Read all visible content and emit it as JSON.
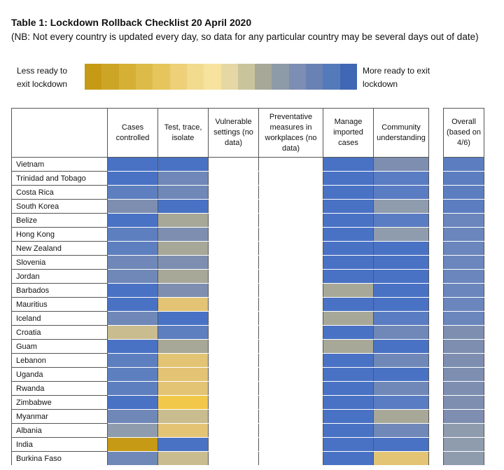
{
  "title": "Table 1: Lockdown Rollback Checklist 20 April 2020",
  "note": "(NB: Not every country is updated every day, so data for any particular country may be several days out of date)",
  "legend": {
    "less_label": "Less ready to exit lockdown",
    "more_label": "More ready to exit lockdown",
    "scale_colors": [
      "#c69a14",
      "#cda526",
      "#d6b035",
      "#ddbb48",
      "#e6c55c",
      "#edd077",
      "#f2da8f",
      "#f7e39d",
      "#e6d8a5",
      "#c9c49c",
      "#a8a898",
      "#8d9aa8",
      "#7d8eb4",
      "#6a81b4",
      "#557aba",
      "#4067b4"
    ]
  },
  "columns": {
    "country": "",
    "cases_controlled": "Cases controlled",
    "test_trace_isolate": "Test, trace, isolate",
    "vulnerable_settings": "Vulnerable settings (no data)",
    "preventative_measures": "Preventative measures in workplaces (no data)",
    "manage_imported": "Manage imported cases",
    "community_understanding": "Community understanding",
    "overall": "Overall (based on 4/6)"
  },
  "rows": [
    {
      "country": "Vietnam",
      "colors": [
        "#4a72c4",
        "#4a72c4",
        "#ffffff",
        "#ffffff",
        "#4a72c4",
        "#7d8eb0"
      ],
      "overall": "#5c7ec0"
    },
    {
      "country": "Trinidad and Tobago",
      "colors": [
        "#4a72c4",
        "#6f88b8",
        "#ffffff",
        "#ffffff",
        "#4a72c4",
        "#5a7cc2"
      ],
      "overall": "#5c7ec0"
    },
    {
      "country": "Costa Rica",
      "colors": [
        "#5e7fbf",
        "#6f88b8",
        "#ffffff",
        "#ffffff",
        "#4a72c4",
        "#5a7cc2"
      ],
      "overall": "#5c7ec0"
    },
    {
      "country": "South Korea",
      "colors": [
        "#7d8eb0",
        "#4a72c4",
        "#ffffff",
        "#ffffff",
        "#4a72c4",
        "#8f9cae"
      ],
      "overall": "#5c7ec0"
    },
    {
      "country": "Belize",
      "colors": [
        "#4a72c4",
        "#a8a898",
        "#ffffff",
        "#ffffff",
        "#4a72c4",
        "#5a7cc2"
      ],
      "overall": "#6a86bc"
    },
    {
      "country": "Hong Kong",
      "colors": [
        "#5e7fbf",
        "#7d8eb0",
        "#ffffff",
        "#ffffff",
        "#4a72c4",
        "#8f9cae"
      ],
      "overall": "#6a86bc"
    },
    {
      "country": "New Zealand",
      "colors": [
        "#5e7fbf",
        "#a8a898",
        "#ffffff",
        "#ffffff",
        "#4a72c4",
        "#4a72c4"
      ],
      "overall": "#6a86bc"
    },
    {
      "country": "Slovenia",
      "colors": [
        "#6f88b8",
        "#7d8eb0",
        "#ffffff",
        "#ffffff",
        "#4a72c4",
        "#4a72c4"
      ],
      "overall": "#6a86bc"
    },
    {
      "country": "Jordan",
      "colors": [
        "#6f88b8",
        "#a8a898",
        "#ffffff",
        "#ffffff",
        "#4a72c4",
        "#4a72c4"
      ],
      "overall": "#6a86bc"
    },
    {
      "country": "Barbados",
      "colors": [
        "#4a72c4",
        "#7d8eb0",
        "#ffffff",
        "#ffffff",
        "#a8a898",
        "#4a72c4"
      ],
      "overall": "#6a86bc"
    },
    {
      "country": "Mauritius",
      "colors": [
        "#4a72c4",
        "#e3c475",
        "#ffffff",
        "#ffffff",
        "#4a72c4",
        "#4a72c4"
      ],
      "overall": "#6a86bc"
    },
    {
      "country": "Iceland",
      "colors": [
        "#6f88b8",
        "#4a72c4",
        "#ffffff",
        "#ffffff",
        "#a8a898",
        "#5a7cc2"
      ],
      "overall": "#6a86bc"
    },
    {
      "country": "Croatia",
      "colors": [
        "#c9bc8e",
        "#5e7fbf",
        "#ffffff",
        "#ffffff",
        "#4a72c4",
        "#6f88b8"
      ],
      "overall": "#7d8eb0"
    },
    {
      "country": "Guam",
      "colors": [
        "#4a72c4",
        "#a8a898",
        "#ffffff",
        "#ffffff",
        "#a8a898",
        "#4a72c4"
      ],
      "overall": "#7d8eb0"
    },
    {
      "country": "Lebanon",
      "colors": [
        "#5e7fbf",
        "#e3c475",
        "#ffffff",
        "#ffffff",
        "#4a72c4",
        "#6f88b8"
      ],
      "overall": "#7d8eb0"
    },
    {
      "country": "Uganda",
      "colors": [
        "#5e7fbf",
        "#e3c475",
        "#ffffff",
        "#ffffff",
        "#4a72c4",
        "#4a72c4"
      ],
      "overall": "#7d8eb0"
    },
    {
      "country": "Rwanda",
      "colors": [
        "#5e7fbf",
        "#e3c475",
        "#ffffff",
        "#ffffff",
        "#4a72c4",
        "#6f88b8"
      ],
      "overall": "#7d8eb0"
    },
    {
      "country": "Zimbabwe",
      "colors": [
        "#4a72c4",
        "#f2c84a",
        "#ffffff",
        "#ffffff",
        "#4a72c4",
        "#5a7cc2"
      ],
      "overall": "#7d8eb0"
    },
    {
      "country": "Myanmar",
      "colors": [
        "#6f88b8",
        "#c9bc8e",
        "#ffffff",
        "#ffffff",
        "#4a72c4",
        "#a8a898"
      ],
      "overall": "#7d8eb0"
    },
    {
      "country": "Albania",
      "colors": [
        "#8f9cae",
        "#e3c475",
        "#ffffff",
        "#ffffff",
        "#4a72c4",
        "#6f88b8"
      ],
      "overall": "#8f9cae"
    },
    {
      "country": "India",
      "colors": [
        "#c69a14",
        "#4a72c4",
        "#ffffff",
        "#ffffff",
        "#4a72c4",
        "#4a72c4"
      ],
      "overall": "#8f9cae"
    },
    {
      "country": "Burkina Faso",
      "colors": [
        "#6f88b8",
        "#c9bc8e",
        "#ffffff",
        "#ffffff",
        "#4a72c4",
        "#e3c475"
      ],
      "overall": "#8f9cae"
    }
  ]
}
